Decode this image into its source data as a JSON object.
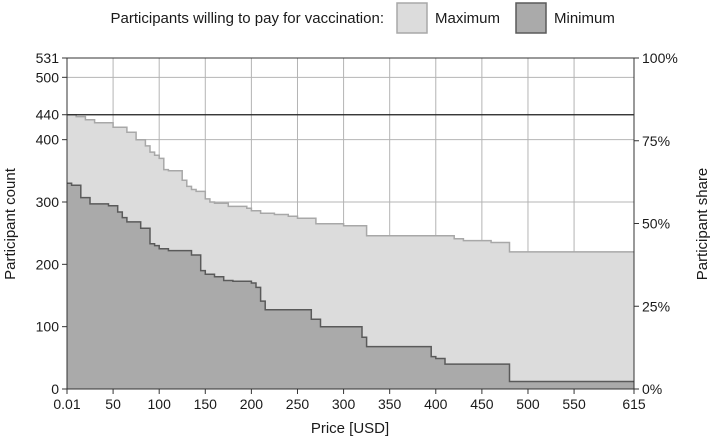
{
  "chart_data": {
    "type": "area",
    "legend": {
      "title": "Participants willing to pay for vaccination:",
      "placement": "top",
      "entries": [
        "Maximum",
        "Minimum"
      ]
    },
    "xlabel": "Price [USD]",
    "ylabel": "Participant count",
    "y2label": "Participant share",
    "xlim": [
      0.01,
      615
    ],
    "ylim": [
      0,
      531
    ],
    "x_ticks": [
      {
        "value": 0.01,
        "label": "0.01"
      },
      {
        "value": 50,
        "label": "50"
      },
      {
        "value": 100,
        "label": "100"
      },
      {
        "value": 150,
        "label": "150"
      },
      {
        "value": 200,
        "label": "200"
      },
      {
        "value": 250,
        "label": "250"
      },
      {
        "value": 300,
        "label": "300"
      },
      {
        "value": 350,
        "label": "350"
      },
      {
        "value": 400,
        "label": "400"
      },
      {
        "value": 450,
        "label": "450"
      },
      {
        "value": 500,
        "label": "500"
      },
      {
        "value": 550,
        "label": "550"
      },
      {
        "value": 615,
        "label": "615"
      }
    ],
    "y_ticks": [
      {
        "value": 0,
        "label": "0"
      },
      {
        "value": 100,
        "label": "100"
      },
      {
        "value": 200,
        "label": "200"
      },
      {
        "value": 300,
        "label": "300"
      },
      {
        "value": 400,
        "label": "400"
      },
      {
        "value": 440,
        "label": "440"
      },
      {
        "value": 500,
        "label": "500"
      },
      {
        "value": 531,
        "label": "531"
      }
    ],
    "y2_ticks": [
      {
        "value": 0,
        "label": "0%"
      },
      {
        "value": 132.75,
        "label": "25%"
      },
      {
        "value": 265.5,
        "label": "50%"
      },
      {
        "value": 398.25,
        "label": "75%"
      },
      {
        "value": 531,
        "label": "100%"
      }
    ],
    "reference_line": 440,
    "grid": true,
    "colors": {
      "maximum_fill": "#dcdcdc",
      "maximum_line": "#a8a8a8",
      "minimum_fill": "#aaaaaa",
      "minimum_line": "#5a5a5a"
    },
    "series": [
      {
        "name": "Maximum",
        "x": [
          0.01,
          10,
          20,
          30,
          50,
          65,
          75,
          85,
          90,
          95,
          100,
          105,
          110,
          125,
          130,
          135,
          140,
          150,
          155,
          160,
          175,
          195,
          200,
          210,
          225,
          240,
          250,
          270,
          300,
          325,
          420,
          430,
          460,
          480,
          615
        ],
        "y": [
          440,
          437,
          432,
          427,
          420,
          412,
          400,
          390,
          380,
          375,
          370,
          352,
          350,
          335,
          325,
          320,
          317,
          305,
          300,
          298,
          293,
          290,
          286,
          282,
          280,
          277,
          274,
          265,
          262,
          246,
          241,
          238,
          235,
          220,
          220
        ]
      },
      {
        "name": "Minimum",
        "x": [
          0.01,
          5,
          15,
          25,
          45,
          55,
          60,
          65,
          80,
          90,
          95,
          100,
          110,
          135,
          145,
          150,
          160,
          170,
          180,
          200,
          205,
          210,
          215,
          230,
          265,
          275,
          290,
          320,
          325,
          350,
          395,
          400,
          410,
          440,
          480,
          615
        ],
        "y": [
          330,
          327,
          307,
          297,
          294,
          284,
          275,
          268,
          258,
          233,
          230,
          225,
          222,
          215,
          190,
          184,
          180,
          174,
          173,
          170,
          163,
          141,
          127,
          127,
          112,
          100,
          100,
          83,
          68,
          68,
          52,
          49,
          40,
          40,
          12,
          12
        ]
      }
    ]
  }
}
